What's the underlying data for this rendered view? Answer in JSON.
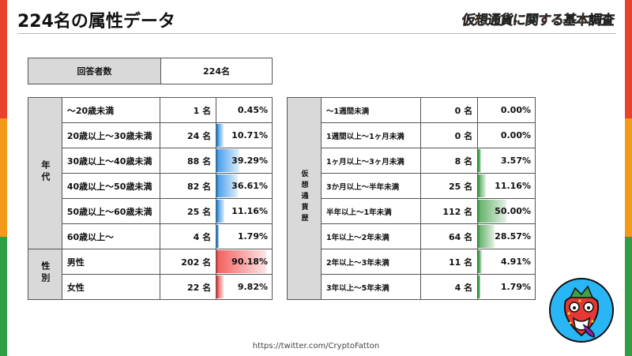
{
  "title": "224名の属性データ",
  "brand": "仮想通貨に関する基本調査",
  "respondents": {
    "label": "回答者数",
    "value": "224名"
  },
  "age": {
    "group_label": "年代",
    "rows": [
      {
        "label": "～20歳未満",
        "count": "1 名",
        "percent": "0.45%",
        "ratio": 0.0045
      },
      {
        "label": "20歳以上～30歳未満",
        "count": "24 名",
        "percent": "10.71%",
        "ratio": 0.1071
      },
      {
        "label": "30歳以上～40歳未満",
        "count": "88 名",
        "percent": "39.29%",
        "ratio": 0.3929
      },
      {
        "label": "40歳以上～50歳未満",
        "count": "82 名",
        "percent": "36.61%",
        "ratio": 0.3661
      },
      {
        "label": "50歳以上～60歳未満",
        "count": "25 名",
        "percent": "11.16%",
        "ratio": 0.1116
      },
      {
        "label": "60歳以上～",
        "count": "4 名",
        "percent": "1.79%",
        "ratio": 0.0179
      }
    ]
  },
  "gender": {
    "group_label": "性別",
    "rows": [
      {
        "label": "男性",
        "count": "202 名",
        "percent": "90.18%",
        "ratio": 0.9018
      },
      {
        "label": "女性",
        "count": "22 名",
        "percent": "9.82%",
        "ratio": 0.0982
      }
    ]
  },
  "history": {
    "group_label": "仮想通貨歴",
    "rows": [
      {
        "label": "～1週間未満",
        "count": "0 名",
        "percent": "0.00%",
        "ratio": 0
      },
      {
        "label": "1週間以上～1ヶ月未満",
        "count": "0 名",
        "percent": "0.00%",
        "ratio": 0
      },
      {
        "label": "1ヶ月以上～3ヶ月未満",
        "count": "8 名",
        "percent": "3.57%",
        "ratio": 0.0357
      },
      {
        "label": "3か月以上～半年未満",
        "count": "25 名",
        "percent": "11.16%",
        "ratio": 0.1116
      },
      {
        "label": "半年以上～1年未満",
        "count": "112 名",
        "percent": "50.00%",
        "ratio": 0.5
      },
      {
        "label": "1年以上～2年未満",
        "count": "64 名",
        "percent": "28.57%",
        "ratio": 0.2857
      },
      {
        "label": "2年以上～3年未満",
        "count": "11 名",
        "percent": "4.91%",
        "ratio": 0.0491
      },
      {
        "label": "3年以上～5年未満",
        "count": "4 名",
        "percent": "1.79%",
        "ratio": 0.0179
      }
    ]
  },
  "colors": {
    "age": "#1e88e5",
    "gender": "#ef3b3b",
    "history": "#43a047"
  },
  "footer_url": "https://twitter.com/CryptoFatton"
}
